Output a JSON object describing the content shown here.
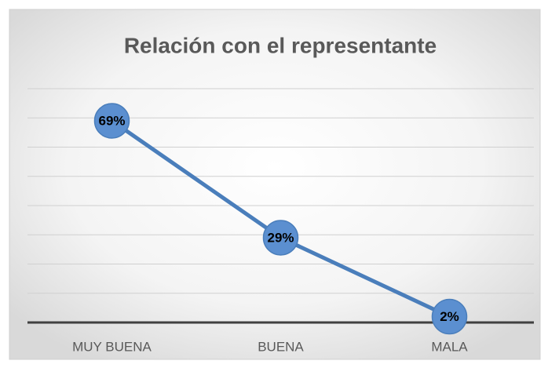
{
  "chart_data": {
    "type": "line",
    "title": "Relación con el representante",
    "categories": [
      "MUY BUENA",
      "BUENA",
      "MALA"
    ],
    "values": [
      69,
      29,
      2
    ],
    "value_labels": [
      "69%",
      "29%",
      "2%"
    ],
    "color": "#4a7ebb",
    "marker_color": "#5b8fd0",
    "ylim": [
      0,
      80
    ],
    "yticks": [
      0,
      10,
      20,
      30,
      40,
      50,
      60,
      70,
      80
    ],
    "grid": true,
    "show_ytick_labels": false
  }
}
